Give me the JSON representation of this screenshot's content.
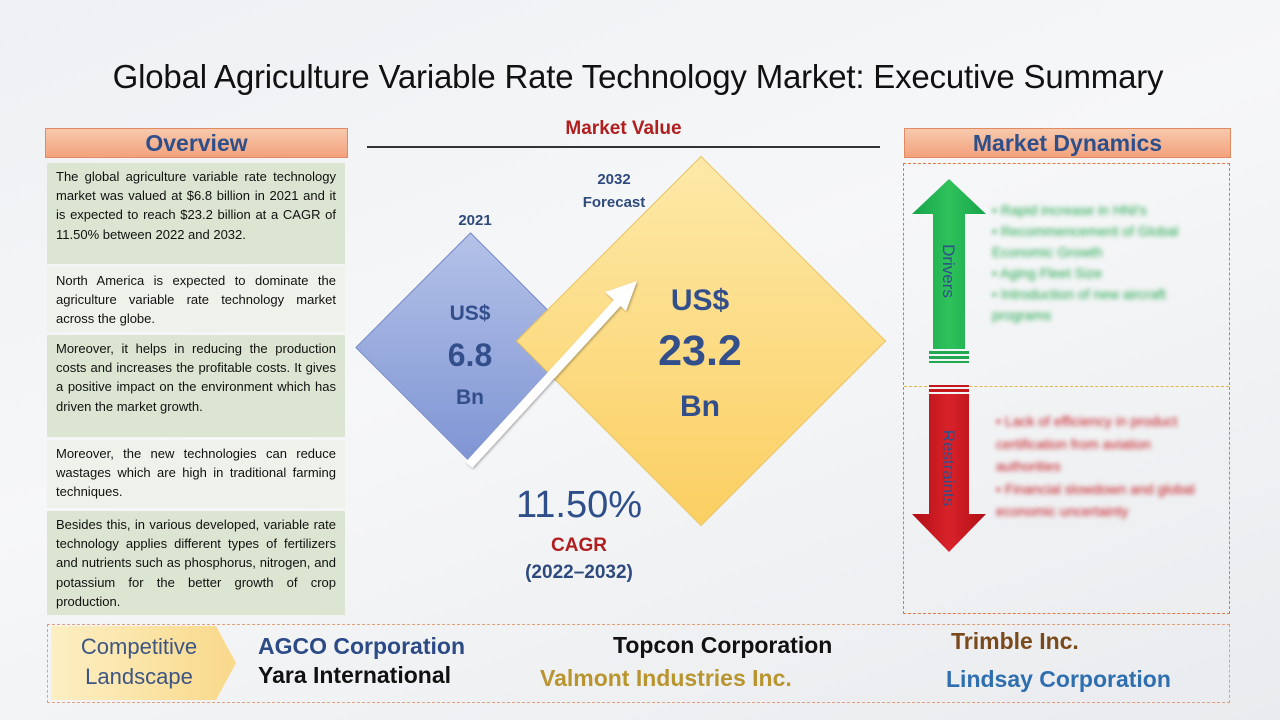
{
  "title": "Global Agriculture Variable Rate Technology Market: Executive Summary",
  "overview": {
    "heading": "Overview",
    "paragraphs": [
      "The global agriculture variable rate technology market was valued at $6.8 billion in 2021 and it is expected to reach $23.2 billion at a CAGR of 11.50% between 2022 and 2032.",
      "North America is expected to dominate the agriculture variable rate technology market across the globe.",
      "Moreover, it helps in reducing the production costs and increases the profitable costs. It gives a positive impact on the environment which has driven the market growth.",
      "Moreover, the new technologies can reduce wastages which are high in traditional farming techniques.",
      "Besides this, in various developed, variable rate technology applies different types of fertilizers and nutrients such as phosphorus, nitrogen, and potassium for the better growth of crop production."
    ]
  },
  "market_value": {
    "heading": "Market Value",
    "year_2021": "2021",
    "forecast_year": "2032",
    "forecast_label": "Forecast",
    "v2021": {
      "currency": "US$",
      "amount": "6.8",
      "unit": "Bn"
    },
    "v2032": {
      "currency": "US$",
      "amount": "23.2",
      "unit": "Bn"
    },
    "cagr_value": "11.50%",
    "cagr_label": "CAGR",
    "cagr_period": "(2022–2032)"
  },
  "dynamics": {
    "heading": "Market Dynamics",
    "drivers_label": "Drivers",
    "restraints_label": "Restraints",
    "drivers": [
      "Rapid increase in HNI's",
      "Recommencement of Global Economic Growth",
      "Aging Fleet Size",
      "Introduction of new aircraft programs"
    ],
    "restraints": [
      "Lack of efficiency in product certification from aviation authorities",
      "Financial slowdown and global economic uncertainty"
    ]
  },
  "competitive": {
    "label_line1": "Competitive",
    "label_line2": "Landscape",
    "companies": [
      "AGCO Corporation",
      "Yara International",
      "Topcon Corporation",
      "Valmont Industries Inc.",
      "Trimble Inc.",
      "Lindsay Corporation"
    ]
  },
  "colors": {
    "header_fill": "#f3a27c",
    "overview_dark": "#dbe5d2",
    "overview_light": "#eef2ea",
    "diamond_2021": "#8ea0da",
    "diamond_2032": "#fbd26c",
    "drivers_green": "#1fa64d",
    "restraints_red": "#c0121a",
    "accent_red": "#b01e1e",
    "accent_blue": "#2e4f8a"
  }
}
